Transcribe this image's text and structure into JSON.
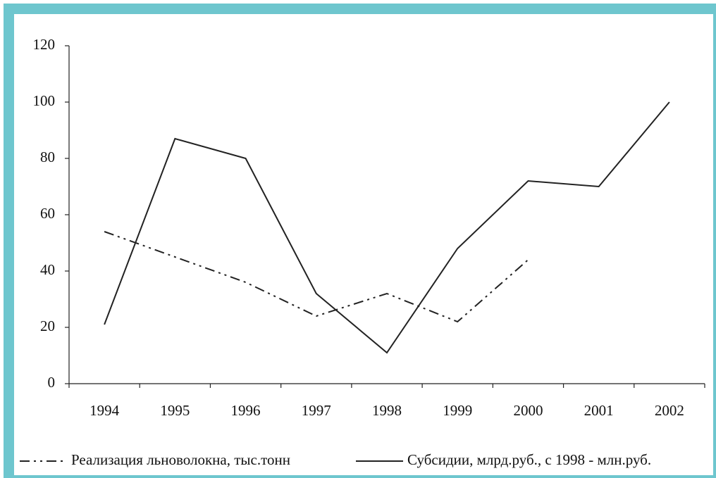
{
  "chart_data": {
    "type": "line",
    "categories": [
      "1994",
      "1995",
      "1996",
      "1997",
      "1998",
      "1999",
      "2000",
      "2001",
      "2002"
    ],
    "series": [
      {
        "name": "Реализация льноволокна, тыс.тонн",
        "color": "#222222",
        "style": "dashdot",
        "values": [
          54,
          45,
          36,
          24,
          32,
          22,
          44,
          null,
          null
        ]
      },
      {
        "name": "Субсидии, млрд.руб.,  с 1998 - млн.руб.",
        "color": "#222222",
        "style": "solid",
        "values": [
          21,
          87,
          80,
          32,
          11,
          48,
          72,
          70,
          100
        ]
      }
    ],
    "ylim": [
      0,
      120
    ],
    "yticks": [
      0,
      20,
      40,
      60,
      80,
      100,
      120
    ],
    "grid": false,
    "legend": "bottom"
  }
}
